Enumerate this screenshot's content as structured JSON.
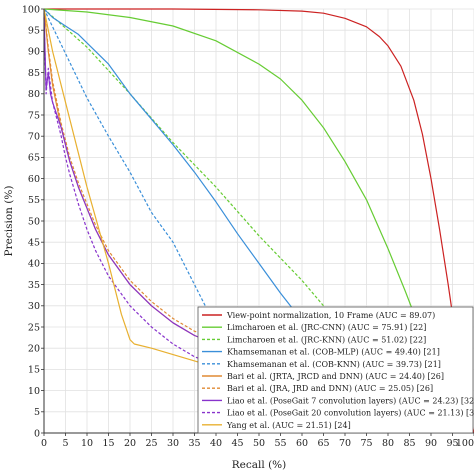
{
  "chart_data": {
    "type": "line",
    "xlabel": "Recall (%)",
    "ylabel": "Precision (%)",
    "xlim": [
      0,
      100
    ],
    "ylim": [
      0,
      100
    ],
    "xticks": [
      0,
      5,
      10,
      15,
      20,
      25,
      30,
      35,
      40,
      45,
      50,
      55,
      60,
      65,
      70,
      75,
      80,
      85,
      90,
      95,
      100
    ],
    "yticks": [
      0,
      5,
      10,
      15,
      20,
      25,
      30,
      35,
      40,
      45,
      50,
      55,
      60,
      65,
      70,
      75,
      80,
      85,
      90,
      95,
      100
    ],
    "grid": true,
    "legend_position": "bottom-right",
    "series": [
      {
        "name": "View-point normalization, 10 Frame (AUC = 89.07)",
        "color": "#cc2222",
        "dash": "solid",
        "x": [
          0,
          10,
          30,
          50,
          60,
          65,
          70,
          75,
          78,
          80,
          83,
          86,
          88,
          90,
          92,
          94,
          96,
          98,
          100
        ],
        "y": [
          100,
          100,
          100,
          99.8,
          99.5,
          99,
          97.8,
          95.8,
          93.5,
          91.3,
          86.5,
          78.5,
          70.5,
          60,
          48,
          35,
          21,
          8,
          0
        ]
      },
      {
        "name": "Limcharoen et al. (JRC-CNN) (AUC = 75.91) [22]",
        "color": "#66cc33",
        "dash": "solid",
        "x": [
          0,
          10,
          20,
          30,
          40,
          50,
          55,
          60,
          65,
          70,
          75,
          80,
          84,
          88,
          91,
          94,
          97
        ],
        "y": [
          100,
          99.3,
          98,
          96,
          92.5,
          87,
          83.5,
          78.5,
          72,
          64,
          55,
          43.5,
          33.5,
          23,
          15,
          8,
          2
        ]
      },
      {
        "name": "Limcharoen et al. (JRC-KNN) (AUC = 51.02) [22]",
        "color": "#66cc33",
        "dash": "dashed",
        "x": [
          0,
          10,
          20,
          30,
          40,
          50,
          60,
          70,
          75,
          80,
          86
        ],
        "y": [
          100,
          91,
          80,
          68.5,
          58,
          46.5,
          36,
          24,
          17.5,
          11,
          2
        ]
      },
      {
        "name": "Khamsemanan et al. (COB-MLP) (AUC = 49.40) [21]",
        "color": "#3a8fd9",
        "dash": "solid",
        "x": [
          0,
          2,
          5,
          8,
          10,
          15,
          20,
          25,
          30,
          35,
          40,
          45,
          50,
          55,
          60,
          65,
          68,
          70
        ],
        "y": [
          100,
          98,
          96,
          94,
          92,
          87,
          80,
          74,
          68,
          61.5,
          54.5,
          47,
          40,
          33,
          26.5,
          20,
          15.5,
          12
        ]
      },
      {
        "name": "Khamsemanan et al. (COB-KNN) (AUC = 39.73) [21]",
        "color": "#3a8fd9",
        "dash": "dashed",
        "x": [
          0,
          5,
          10,
          15,
          20,
          25,
          30,
          35,
          40,
          45,
          50,
          55,
          60,
          65,
          70
        ],
        "y": [
          100,
          89.5,
          79,
          70,
          61.5,
          52,
          45,
          35,
          25,
          22.5,
          20,
          17.5,
          15,
          12.5,
          10
        ]
      },
      {
        "name": "Bari et al. (JRTA, JRCD and DNN) (AUC = 24.40) [26]",
        "color": "#e08a33",
        "dash": "solid",
        "x": [
          0,
          1,
          2,
          3,
          4,
          5,
          6,
          8,
          10,
          12,
          15,
          20,
          25,
          30,
          35,
          40,
          45
        ],
        "y": [
          100,
          90,
          82,
          77,
          72,
          68,
          64,
          58,
          53,
          48,
          42,
          35,
          30,
          26,
          23,
          21,
          19
        ]
      },
      {
        "name": "Bari et al. (JRA, JRD and DNN) (AUC = 25.05) [26]",
        "color": "#e08a33",
        "dash": "dashed",
        "x": [
          0,
          1,
          2,
          3,
          4,
          5,
          6,
          8,
          10,
          12,
          15,
          20,
          25,
          30,
          35,
          40,
          45
        ],
        "y": [
          100,
          91,
          83,
          78,
          73,
          69,
          65,
          59,
          54,
          49,
          43,
          36,
          31,
          27,
          24,
          22,
          20
        ]
      },
      {
        "name": "Liao et al. (PoseGait 7 convolution layers) (AUC = 24.23) [32]",
        "color": "#8833cc",
        "dash": "solid",
        "x": [
          0,
          0.5,
          1,
          1.5,
          2,
          3,
          4,
          5,
          6,
          8,
          10,
          12,
          15,
          20,
          25,
          30,
          35,
          40,
          45
        ],
        "y": [
          99,
          81,
          85,
          80,
          78,
          75,
          72,
          68,
          64,
          58,
          53,
          48,
          42,
          35,
          30,
          26,
          23,
          21,
          19
        ]
      },
      {
        "name": "Liao et al. (PoseGait 20 convolution layers) (AUC = 21.13) [32]",
        "color": "#8833cc",
        "dash": "dashed",
        "x": [
          0,
          0.5,
          1,
          2,
          3,
          4,
          5,
          6,
          8,
          10,
          12,
          15,
          20,
          25,
          30,
          35,
          40,
          45
        ],
        "y": [
          98,
          80,
          86,
          78,
          74,
          70,
          65,
          61,
          54,
          48,
          43,
          37,
          30,
          25,
          21,
          18,
          16,
          14
        ]
      },
      {
        "name": "Yang et al. (AUC = 21.51) [24]",
        "color": "#e8b030",
        "dash": "solid",
        "x": [
          0,
          2,
          5,
          8,
          10,
          15,
          18,
          20,
          21,
          25,
          30,
          35,
          40,
          45
        ],
        "y": [
          100,
          90,
          78,
          66,
          58,
          40,
          28,
          22,
          21,
          20,
          18.5,
          17,
          15.5,
          14
        ]
      }
    ]
  }
}
